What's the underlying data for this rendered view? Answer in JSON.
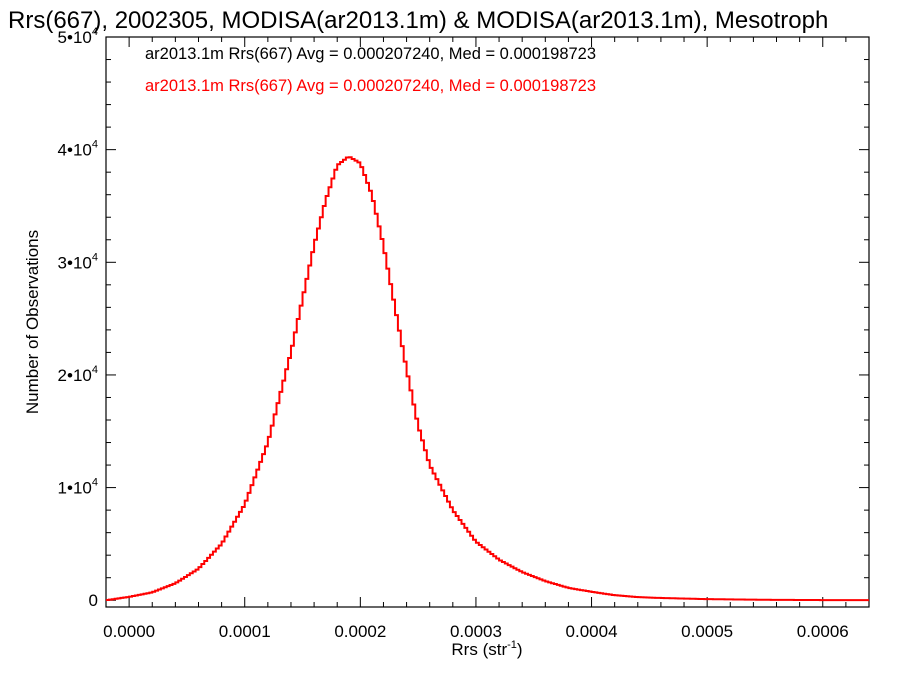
{
  "chart_data": {
    "type": "histogram",
    "title": "Rrs(667), 2002305, MODISA(ar2013.1m) & MODISA(ar2013.1m), Mesotroph",
    "xlabel": "Rrs (str",
    "xlabel_sup": "-1",
    "xlabel_close": ")",
    "ylabel": "Number of Observations",
    "xlim": [
      -2e-05,
      0.00064
    ],
    "ylim": [
      -600,
      50000
    ],
    "x_ticks": [
      {
        "value": 0.0,
        "label": "0.0000"
      },
      {
        "value": 0.0001,
        "label": "0.0001"
      },
      {
        "value": 0.0002,
        "label": "0.0002"
      },
      {
        "value": 0.0003,
        "label": "0.0003"
      },
      {
        "value": 0.0004,
        "label": "0.0004"
      },
      {
        "value": 0.0005,
        "label": "0.0005"
      },
      {
        "value": 0.0006,
        "label": "0.0006"
      }
    ],
    "y_ticks": [
      {
        "value": 0,
        "mantissa": "0",
        "exp": ""
      },
      {
        "value": 10000,
        "mantissa": "1•10",
        "exp": "4"
      },
      {
        "value": 20000,
        "mantissa": "2•10",
        "exp": "4"
      },
      {
        "value": 30000,
        "mantissa": "3•10",
        "exp": "4"
      },
      {
        "value": 40000,
        "mantissa": "4•10",
        "exp": "4"
      },
      {
        "value": 50000,
        "mantissa": "5•10",
        "exp": "4"
      }
    ],
    "annotations": [
      {
        "text": "ar2013.1m Rrs(667) Avg = 0.000207240, Med = 0.000198723",
        "color": "#000000"
      },
      {
        "text": "ar2013.1m Rrs(667) Avg = 0.000207240, Med = 0.000198723",
        "color": "#ff0000"
      }
    ],
    "series": [
      {
        "color": "#ff0000",
        "x": [
          -2e-05,
          0.0,
          2e-05,
          4e-05,
          6e-05,
          8e-05,
          0.0001,
          0.00012,
          0.00014,
          0.00016,
          0.00017,
          0.00018,
          0.00019,
          0.0002,
          0.00021,
          0.00022,
          0.00023,
          0.00024,
          0.00025,
          0.00026,
          0.00028,
          0.0003,
          0.00032,
          0.00034,
          0.00036,
          0.00038,
          0.0004,
          0.00042,
          0.00044,
          0.00046,
          0.0005,
          0.00055,
          0.0006,
          0.00064
        ],
        "y": [
          0,
          300,
          700,
          1500,
          2800,
          5000,
          8500,
          14000,
          22000,
          31500,
          35500,
          38600,
          39400,
          38800,
          36000,
          31500,
          26000,
          20500,
          15500,
          12000,
          8000,
          5200,
          3600,
          2500,
          1700,
          1100,
          750,
          450,
          280,
          200,
          100,
          40,
          15,
          5
        ]
      }
    ]
  }
}
